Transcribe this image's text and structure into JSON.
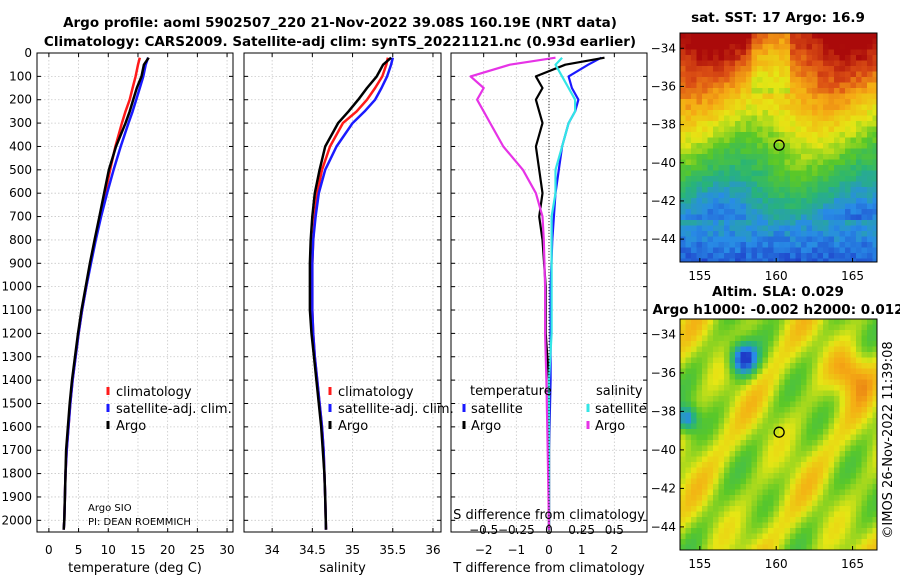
{
  "title": {
    "line1": "Argo profile: aoml 5902507_220 21-Nov-2022 39.08S 160.19E (NRT data)",
    "line2": "Climatology: CARS2009. Satellite-adj clim: synTS_20221121.nc (0.93d earlier)"
  },
  "colors": {
    "climatology": "#ff1a1a",
    "satellite": "#1a1aff",
    "argo": "#000000",
    "sat_salinity": "#33e6e6",
    "argo_salinity": "#e633e6"
  },
  "credits": {
    "argo_org": "Argo SIO",
    "pi": "PI: DEAN ROEMMICH"
  },
  "watermark": "©IMOS 26-Nov-2022 11:39:08",
  "chart_data": [
    {
      "type": "line",
      "id": "temperature",
      "xlabel": "temperature (deg C)",
      "ylabel": "",
      "xlim": [
        -2,
        31
      ],
      "ylim": [
        2050,
        0
      ],
      "xticks": [
        0,
        5,
        10,
        15,
        20,
        25,
        30
      ],
      "yticks": [
        0,
        100,
        200,
        300,
        400,
        500,
        600,
        700,
        800,
        900,
        1000,
        1100,
        1200,
        1300,
        1400,
        1500,
        1600,
        1700,
        1800,
        1900,
        2000
      ],
      "legend": [
        "climatology",
        "satellite-adj. clim.",
        "Argo"
      ],
      "series": [
        {
          "name": "climatology",
          "x": [
            15.3,
            15.0,
            14.6,
            14.1,
            13.6,
            12.9,
            12.3,
            11.2,
            10.3,
            9.5,
            8.6,
            7.8,
            7.0,
            6.3,
            5.6,
            5.0,
            4.5,
            4.0,
            3.6,
            3.3,
            3.0,
            2.8,
            2.7,
            2.6,
            2.5
          ],
          "y": [
            20,
            50,
            100,
            150,
            200,
            250,
            300,
            400,
            500,
            600,
            700,
            800,
            900,
            1000,
            1100,
            1200,
            1300,
            1400,
            1500,
            1600,
            1700,
            1800,
            1900,
            2000,
            2040
          ]
        },
        {
          "name": "satellite-adj. clim.",
          "x": [
            16.7,
            16.3,
            15.9,
            15.3,
            14.7,
            14.1,
            13.4,
            12.1,
            10.9,
            9.8,
            8.8,
            7.9,
            7.1,
            6.3,
            5.6,
            5.0,
            4.5,
            4.0,
            3.6,
            3.3,
            3.0,
            2.8,
            2.7,
            2.6,
            2.5
          ],
          "y": [
            20,
            50,
            100,
            150,
            200,
            250,
            300,
            400,
            500,
            600,
            700,
            800,
            900,
            1000,
            1100,
            1200,
            1300,
            1400,
            1500,
            1600,
            1700,
            1800,
            1900,
            2000,
            2040
          ]
        },
        {
          "name": "Argo",
          "x": [
            16.8,
            16.0,
            15.6,
            14.8,
            14.2,
            13.6,
            12.9,
            11.3,
            10.1,
            9.3,
            8.5,
            7.7,
            6.9,
            6.2,
            5.5,
            4.9,
            4.4,
            3.9,
            3.5,
            3.2,
            2.9,
            2.8,
            2.7,
            2.6,
            2.5
          ],
          "y": [
            20,
            50,
            100,
            150,
            200,
            250,
            300,
            400,
            500,
            600,
            700,
            800,
            900,
            1000,
            1100,
            1200,
            1300,
            1400,
            1500,
            1600,
            1700,
            1800,
            1900,
            2000,
            2040
          ]
        }
      ]
    },
    {
      "type": "line",
      "id": "salinity",
      "xlabel": "salinity",
      "xlim": [
        33.65,
        36.1
      ],
      "ylim": [
        2050,
        0
      ],
      "xticks": [
        34,
        34.5,
        35,
        35.5,
        36
      ],
      "legend": [
        "climatology",
        "satellite-adj. clim.",
        "Argo"
      ],
      "series": [
        {
          "name": "climatology",
          "x": [
            35.44,
            35.42,
            35.37,
            35.28,
            35.18,
            35.05,
            34.88,
            34.72,
            34.62,
            34.56,
            34.53,
            34.51,
            34.5,
            34.5,
            34.5,
            34.51,
            34.53,
            34.56,
            34.59,
            34.62,
            34.64,
            34.65,
            34.66,
            34.67
          ],
          "y": [
            20,
            50,
            100,
            150,
            200,
            250,
            300,
            400,
            500,
            600,
            700,
            800,
            900,
            1000,
            1100,
            1200,
            1300,
            1400,
            1500,
            1600,
            1700,
            1800,
            1900,
            2040
          ]
        },
        {
          "name": "satellite-adj. clim.",
          "x": [
            35.5,
            35.48,
            35.43,
            35.36,
            35.28,
            35.15,
            35.0,
            34.8,
            34.66,
            34.58,
            34.54,
            34.51,
            34.5,
            34.5,
            34.5,
            34.51,
            34.53,
            34.56,
            34.59,
            34.62,
            34.64,
            34.65,
            34.66,
            34.67
          ],
          "y": [
            20,
            50,
            100,
            150,
            200,
            250,
            300,
            400,
            500,
            600,
            700,
            800,
            900,
            1000,
            1100,
            1200,
            1300,
            1400,
            1500,
            1600,
            1700,
            1800,
            1900,
            2040
          ]
        },
        {
          "name": "Argo",
          "x": [
            35.48,
            35.38,
            35.3,
            35.18,
            35.07,
            34.95,
            34.82,
            34.66,
            34.59,
            34.53,
            34.5,
            34.48,
            34.47,
            34.47,
            34.47,
            34.49,
            34.52,
            34.55,
            34.58,
            34.61,
            34.63,
            34.65,
            34.66,
            34.67
          ],
          "y": [
            20,
            50,
            100,
            150,
            200,
            250,
            300,
            400,
            500,
            600,
            700,
            800,
            900,
            1000,
            1100,
            1200,
            1300,
            1400,
            1500,
            1600,
            1700,
            1800,
            1900,
            2040
          ]
        }
      ]
    },
    {
      "type": "line",
      "id": "difference",
      "xlabel": "T difference from climatology",
      "xlabel_top": "S difference from climatology",
      "xlim": [
        -3,
        3
      ],
      "ylim": [
        2050,
        0
      ],
      "xticks": [
        -2,
        -1,
        0,
        1,
        2
      ],
      "s_ticks": [
        -0.5,
        -0.25,
        0,
        0.25,
        0.5
      ],
      "legend_temperature": {
        "heading": "temperature",
        "items": [
          "satellite",
          "Argo"
        ]
      },
      "legend_salinity": {
        "heading": "salinity",
        "items": [
          "satellite",
          "Argo"
        ]
      },
      "series": [
        {
          "name": "T satellite",
          "x": [
            1.6,
            1.2,
            0.6,
            0.7,
            0.9,
            0.8,
            0.6,
            0.4,
            0.3,
            0.2,
            0.15,
            0.1,
            0.05,
            0.05,
            0.05,
            0.0,
            0.0
          ],
          "y": [
            20,
            50,
            100,
            150,
            200,
            250,
            300,
            400,
            500,
            600,
            700,
            800,
            1000,
            1200,
            1400,
            1700,
            2040
          ]
        },
        {
          "name": "T Argo",
          "x": [
            1.7,
            0.5,
            -0.4,
            -0.2,
            -0.4,
            -0.3,
            -0.2,
            -0.4,
            -0.3,
            -0.2,
            -0.3,
            -0.2,
            -0.1,
            -0.1,
            0.0,
            0.0,
            0.0
          ],
          "y": [
            20,
            50,
            100,
            150,
            200,
            250,
            300,
            400,
            500,
            600,
            700,
            800,
            1000,
            1200,
            1400,
            1700,
            2040
          ]
        },
        {
          "name": "S satellite",
          "x": [
            0.1,
            0.05,
            0.1,
            0.15,
            0.2,
            0.2,
            0.15,
            0.1,
            0.05,
            0.05,
            0.02,
            0.02,
            0.02,
            0.02,
            0.0,
            0.0,
            0.0
          ],
          "y": [
            20,
            50,
            100,
            150,
            200,
            250,
            300,
            400,
            500,
            600,
            700,
            800,
            1000,
            1200,
            1400,
            1700,
            2040
          ]
        },
        {
          "name": "S Argo",
          "x": [
            0.05,
            -0.3,
            -0.6,
            -0.5,
            -0.55,
            -0.5,
            -0.45,
            -0.35,
            -0.2,
            -0.1,
            -0.05,
            -0.04,
            -0.03,
            -0.03,
            -0.02,
            -0.01,
            0.0
          ],
          "y": [
            20,
            50,
            100,
            150,
            200,
            250,
            300,
            400,
            500,
            600,
            700,
            800,
            1000,
            1200,
            1400,
            1700,
            2040
          ]
        }
      ]
    },
    {
      "type": "heatmap",
      "id": "sst-map",
      "title": "sat. SST: 17 Argo: 16.9",
      "xlim": [
        153.7,
        166.6
      ],
      "ylim": [
        -45.2,
        -33.2
      ],
      "xticks": [
        155,
        160,
        165
      ],
      "yticks": [
        -34,
        -36,
        -38,
        -40,
        -42,
        -44
      ],
      "marker": {
        "lon": 160.19,
        "lat": -39.08
      }
    },
    {
      "type": "heatmap",
      "id": "sla-map",
      "title_line1": "Altim. SLA: 0.029",
      "title_line2": "Argo h1000: -0.002 h2000: 0.012",
      "xlim": [
        153.7,
        166.6
      ],
      "ylim": [
        -45.2,
        -33.2
      ],
      "xticks": [
        155,
        160,
        165
      ],
      "yticks": [
        -34,
        -36,
        -38,
        -40,
        -42,
        -44
      ],
      "marker": {
        "lon": 160.19,
        "lat": -39.08
      }
    }
  ]
}
